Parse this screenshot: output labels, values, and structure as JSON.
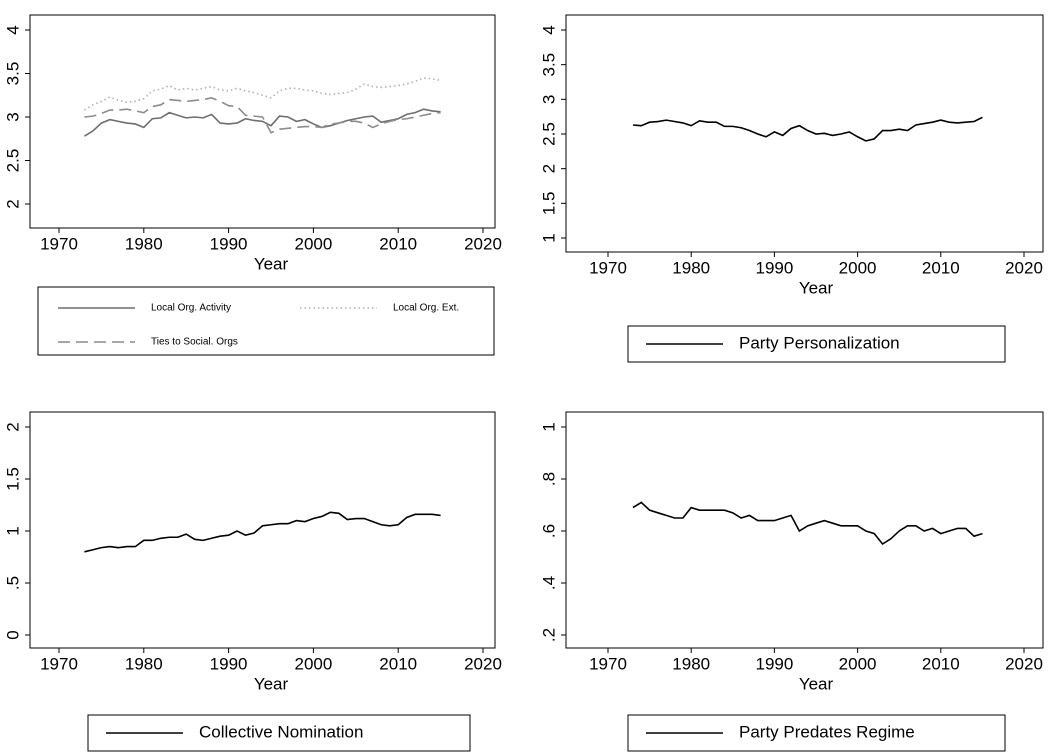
{
  "chart_data": [
    {
      "type": "line",
      "xlabel": "Year",
      "x": [
        1973,
        1974,
        1975,
        1976,
        1977,
        1978,
        1979,
        1980,
        1981,
        1982,
        1983,
        1984,
        1985,
        1986,
        1987,
        1988,
        1989,
        1990,
        1991,
        1992,
        1993,
        1994,
        1995,
        1996,
        1997,
        1998,
        1999,
        2000,
        2001,
        2002,
        2003,
        2004,
        2005,
        2006,
        2007,
        2008,
        2009,
        2010,
        2011,
        2012,
        2013,
        2014,
        2015
      ],
      "series": [
        {
          "name": "Local Org. Activity",
          "color": "#6e6e6e",
          "style": "solid",
          "values": [
            2.78,
            2.84,
            2.93,
            2.97,
            2.95,
            2.93,
            2.92,
            2.88,
            2.98,
            2.99,
            3.05,
            3.02,
            2.99,
            3.0,
            2.99,
            3.03,
            2.93,
            2.92,
            2.93,
            2.98,
            2.96,
            2.95,
            2.9,
            3.01,
            3.0,
            2.95,
            2.97,
            2.92,
            2.88,
            2.9,
            2.93,
            2.96,
            2.98,
            3.0,
            3.01,
            2.94,
            2.96,
            2.98,
            3.03,
            3.05,
            3.09,
            3.07,
            3.06
          ]
        },
        {
          "name": "Local Org. Ext.",
          "color": "#b0b0b0",
          "style": "dot",
          "values": [
            3.08,
            3.14,
            3.18,
            3.23,
            3.19,
            3.17,
            3.18,
            3.21,
            3.3,
            3.32,
            3.36,
            3.31,
            3.33,
            3.31,
            3.33,
            3.35,
            3.31,
            3.3,
            3.33,
            3.3,
            3.28,
            3.25,
            3.22,
            3.3,
            3.33,
            3.33,
            3.31,
            3.3,
            3.27,
            3.26,
            3.27,
            3.28,
            3.32,
            3.38,
            3.35,
            3.34,
            3.35,
            3.36,
            3.38,
            3.41,
            3.45,
            3.44,
            3.42
          ]
        },
        {
          "name": "Ties to Social. Orgs",
          "color": "#8c8c8c",
          "style": "dash",
          "values": [
            3.0,
            3.01,
            3.04,
            3.08,
            3.08,
            3.09,
            3.07,
            3.05,
            3.12,
            3.14,
            3.2,
            3.19,
            3.18,
            3.19,
            3.2,
            3.22,
            3.18,
            3.13,
            3.12,
            3.02,
            3.01,
            3.0,
            2.82,
            2.86,
            2.87,
            2.88,
            2.89,
            2.89,
            2.88,
            2.92,
            2.93,
            2.95,
            2.95,
            2.93,
            2.88,
            2.92,
            2.95,
            2.97,
            2.98,
            3.0,
            3.02,
            3.04,
            3.05
          ]
        }
      ],
      "xlim": [
        1970,
        2020
      ],
      "xticks": [
        1970,
        1980,
        1990,
        2000,
        2010,
        2020
      ],
      "ylim": [
        2,
        4
      ],
      "yticks": [
        2,
        2.5,
        3,
        3.5,
        4
      ]
    },
    {
      "type": "line",
      "xlabel": "Year",
      "x": [
        1973,
        1974,
        1975,
        1976,
        1977,
        1978,
        1979,
        1980,
        1981,
        1982,
        1983,
        1984,
        1985,
        1986,
        1987,
        1988,
        1989,
        1990,
        1991,
        1992,
        1993,
        1994,
        1995,
        1996,
        1997,
        1998,
        1999,
        2000,
        2001,
        2002,
        2003,
        2004,
        2005,
        2006,
        2007,
        2008,
        2009,
        2010,
        2011,
        2012,
        2013,
        2014,
        2015
      ],
      "series": [
        {
          "name": "Party Personalization",
          "color": "#000000",
          "style": "solid",
          "values": [
            2.63,
            2.62,
            2.67,
            2.68,
            2.7,
            2.68,
            2.66,
            2.62,
            2.69,
            2.67,
            2.67,
            2.61,
            2.61,
            2.59,
            2.55,
            2.5,
            2.46,
            2.53,
            2.48,
            2.58,
            2.62,
            2.55,
            2.5,
            2.51,
            2.48,
            2.5,
            2.53,
            2.46,
            2.4,
            2.43,
            2.55,
            2.55,
            2.57,
            2.55,
            2.63,
            2.65,
            2.67,
            2.7,
            2.67,
            2.66,
            2.67,
            2.68,
            2.74
          ]
        }
      ],
      "xlim": [
        1970,
        2020
      ],
      "xticks": [
        1970,
        1980,
        1990,
        2000,
        2010,
        2020
      ],
      "ylim": [
        1,
        4
      ],
      "yticks": [
        1,
        1.5,
        2,
        2.5,
        3,
        3.5,
        4
      ]
    },
    {
      "type": "line",
      "xlabel": "Year",
      "x": [
        1973,
        1974,
        1975,
        1976,
        1977,
        1978,
        1979,
        1980,
        1981,
        1982,
        1983,
        1984,
        1985,
        1986,
        1987,
        1988,
        1989,
        1990,
        1991,
        1992,
        1993,
        1994,
        1995,
        1996,
        1997,
        1998,
        1999,
        2000,
        2001,
        2002,
        2003,
        2004,
        2005,
        2006,
        2007,
        2008,
        2009,
        2010,
        2011,
        2012,
        2013,
        2014,
        2015
      ],
      "series": [
        {
          "name": "Collective Nomination",
          "color": "#000000",
          "style": "solid",
          "values": [
            0.8,
            0.82,
            0.84,
            0.85,
            0.84,
            0.85,
            0.85,
            0.91,
            0.91,
            0.93,
            0.94,
            0.94,
            0.97,
            0.92,
            0.91,
            0.93,
            0.95,
            0.96,
            1.0,
            0.96,
            0.98,
            1.05,
            1.06,
            1.07,
            1.07,
            1.1,
            1.09,
            1.12,
            1.14,
            1.18,
            1.17,
            1.11,
            1.12,
            1.12,
            1.09,
            1.06,
            1.05,
            1.06,
            1.13,
            1.16,
            1.16,
            1.16,
            1.15
          ]
        }
      ],
      "xlim": [
        1970,
        2020
      ],
      "xticks": [
        1970,
        1980,
        1990,
        2000,
        2010,
        2020
      ],
      "ylim": [
        0,
        2
      ],
      "yticks": [
        0,
        {
          "value": 0.5,
          "label": ".5"
        },
        1,
        1.5,
        2
      ]
    },
    {
      "type": "line",
      "xlabel": "Year",
      "x": [
        1973,
        1974,
        1975,
        1976,
        1977,
        1978,
        1979,
        1980,
        1981,
        1982,
        1983,
        1984,
        1985,
        1986,
        1987,
        1988,
        1989,
        1990,
        1991,
        1992,
        1993,
        1994,
        1995,
        1996,
        1997,
        1998,
        1999,
        2000,
        2001,
        2002,
        2003,
        2004,
        2005,
        2006,
        2007,
        2008,
        2009,
        2010,
        2011,
        2012,
        2013,
        2014,
        2015
      ],
      "series": [
        {
          "name": "Party Predates Regime",
          "color": "#000000",
          "style": "solid",
          "values": [
            0.69,
            0.71,
            0.68,
            0.67,
            0.66,
            0.65,
            0.65,
            0.69,
            0.68,
            0.68,
            0.68,
            0.68,
            0.67,
            0.65,
            0.66,
            0.64,
            0.64,
            0.64,
            0.65,
            0.66,
            0.6,
            0.62,
            0.63,
            0.64,
            0.63,
            0.62,
            0.62,
            0.62,
            0.6,
            0.59,
            0.55,
            0.57,
            0.6,
            0.62,
            0.62,
            0.6,
            0.61,
            0.59,
            0.6,
            0.61,
            0.61,
            0.58,
            0.59
          ]
        }
      ],
      "xlim": [
        1970,
        2020
      ],
      "xticks": [
        1970,
        1980,
        1990,
        2000,
        2010,
        2020
      ],
      "ylim": [
        0.2,
        1
      ],
      "yticks": [
        {
          "value": 0.2,
          "label": ".2"
        },
        {
          "value": 0.4,
          "label": ".4"
        },
        {
          "value": 0.6,
          "label": ".6"
        },
        {
          "value": 0.8,
          "label": ".8"
        },
        1
      ]
    }
  ]
}
